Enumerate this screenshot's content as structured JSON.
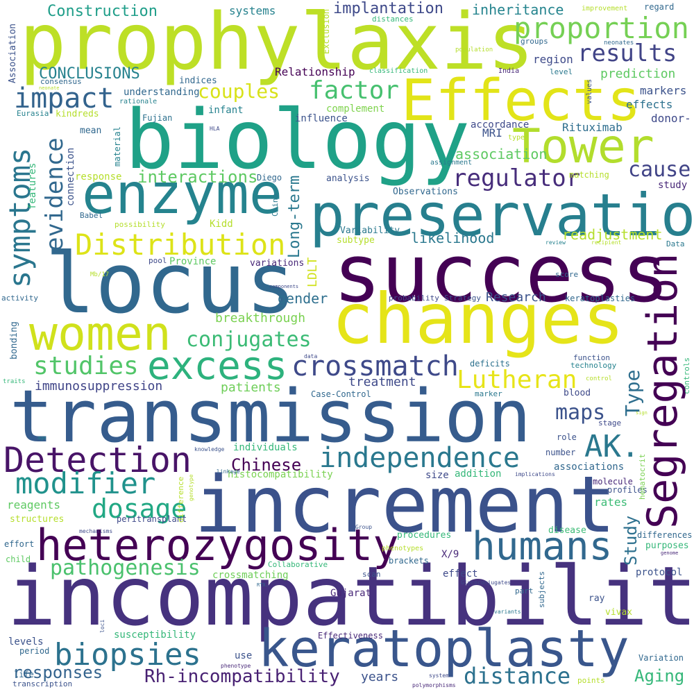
{
  "palette": [
    "#440154",
    "#482878",
    "#3e4989",
    "#31688e",
    "#26828e",
    "#1f9e89",
    "#35b779",
    "#6ece58",
    "#b5de2b",
    "#fde725"
  ],
  "words": [
    {
      "text": "incompatibility",
      "color": "#46327e"
    },
    {
      "text": "transmission",
      "color": "#365c8d"
    },
    {
      "text": "increment",
      "color": "#3b528b"
    },
    {
      "text": "prophylaxis",
      "color": "#bddf26"
    },
    {
      "text": "success",
      "color": "#440154"
    },
    {
      "text": "biology",
      "color": "#1fa187"
    },
    {
      "text": "changes",
      "color": "#e5e419"
    },
    {
      "text": "locus",
      "color": "#31688e"
    },
    {
      "text": "keratoplasty",
      "color": "#39568c"
    },
    {
      "text": "preservation",
      "color": "#277f8e"
    },
    {
      "text": "heterozygosity",
      "color": "#440154"
    },
    {
      "text": "enzyme",
      "color": "#25838e"
    },
    {
      "text": "Effects",
      "color": "#e2e418"
    },
    {
      "text": "Tower",
      "color": "#b2dd2d"
    },
    {
      "text": "Segregation",
      "color": "#440154"
    },
    {
      "text": "women",
      "color": "#d0e11c"
    },
    {
      "text": "excess",
      "color": "#2db27d"
    },
    {
      "text": "Detection",
      "color": "#481467"
    },
    {
      "text": "humans",
      "color": "#31688e"
    },
    {
      "text": "crossmatch",
      "color": "#3e4989"
    },
    {
      "text": "independence",
      "color": "#2a788e"
    },
    {
      "text": "modifier",
      "color": "#20928c"
    },
    {
      "text": "biopsies",
      "color": "#2c728e"
    },
    {
      "text": "Distribution",
      "color": "#dde318"
    },
    {
      "text": "symptoms",
      "color": "#2a768e"
    },
    {
      "text": "AK.",
      "color": "#2a788e"
    },
    {
      "text": "proportion",
      "color": "#75d054"
    },
    {
      "text": "impact",
      "color": "#33638d"
    },
    {
      "text": "factor",
      "color": "#46c06f"
    },
    {
      "text": "results",
      "color": "#414487"
    },
    {
      "text": "evidence",
      "color": "#31688e"
    },
    {
      "text": "studies",
      "color": "#52c569"
    },
    {
      "text": "dosage",
      "color": "#22a884"
    },
    {
      "text": "pathogenesis",
      "color": "#4ac16d"
    },
    {
      "text": "distance",
      "color": "#2c718e"
    },
    {
      "text": "Lutheran",
      "color": "#e7e419"
    },
    {
      "text": "conjugates",
      "color": "#3bbb75"
    },
    {
      "text": "regulator",
      "color": "#472d7b"
    },
    {
      "text": "cause",
      "color": "#414487"
    },
    {
      "text": "maps",
      "color": "#3b528b"
    },
    {
      "text": "Type",
      "color": "#2e6e8e"
    },
    {
      "text": "couples",
      "color": "#d8e219"
    },
    {
      "text": "interactions",
      "color": "#5ec962"
    },
    {
      "text": "responses",
      "color": "#33638d"
    },
    {
      "text": "Rh-incompatibility",
      "color": "#482173"
    },
    {
      "text": "Aging",
      "color": "#35b779"
    },
    {
      "text": "Study",
      "color": "#2d708e"
    },
    {
      "text": "Chinese",
      "color": "#440154"
    },
    {
      "text": "Long-term",
      "color": "#2a788e"
    },
    {
      "text": "Construction",
      "color": "#1f9e89"
    },
    {
      "text": "CONCLUSIONS",
      "color": "#26828e"
    },
    {
      "text": "implantation",
      "color": "#3e4989"
    },
    {
      "text": "inheritance",
      "color": "#25848e"
    },
    {
      "text": "association",
      "color": "#5ec962"
    },
    {
      "text": "readjustment",
      "color": "#b5de2b"
    },
    {
      "text": "likelihood",
      "color": "#2a788e"
    },
    {
      "text": "LDLT",
      "color": "#d0e11c"
    },
    {
      "text": "gender",
      "color": "#2e6f8e"
    },
    {
      "text": "Research",
      "color": "#3b528b"
    },
    {
      "text": "breakthrough",
      "color": "#7ad151"
    },
    {
      "text": "immunosuppression",
      "color": "#404588"
    },
    {
      "text": "treatment",
      "color": "#3e4989"
    },
    {
      "text": "patients",
      "color": "#6ece58"
    },
    {
      "text": "years",
      "color": "#3b528b"
    },
    {
      "text": "prediction",
      "color": "#5ec962"
    },
    {
      "text": "region",
      "color": "#3e4a89"
    },
    {
      "text": "markers",
      "color": "#3b528b"
    },
    {
      "text": "effects",
      "color": "#2c718e"
    },
    {
      "text": "donor-",
      "color": "#3e4989"
    },
    {
      "text": "MRI",
      "color": "#3b528b"
    },
    {
      "text": "Rituximab",
      "color": "#2e6e8e"
    },
    {
      "text": "systems",
      "color": "#26828e"
    },
    {
      "text": "Relationship",
      "color": "#440154"
    },
    {
      "text": "understanding",
      "color": "#31688e"
    },
    {
      "text": "infant",
      "color": "#26828e"
    },
    {
      "text": "influence",
      "color": "#3b528b"
    },
    {
      "text": "complement",
      "color": "#7fd34e"
    },
    {
      "text": "accordance",
      "color": "#3e4989"
    },
    {
      "text": "connection",
      "color": "#3b528b"
    },
    {
      "text": "features",
      "color": "#35b779"
    },
    {
      "text": "response",
      "color": "#b5de2b"
    },
    {
      "text": "Kidd",
      "color": "#b5de2b"
    },
    {
      "text": "Province",
      "color": "#5ec962"
    },
    {
      "text": "study",
      "color": "#482878"
    },
    {
      "text": "analysis",
      "color": "#3b528b"
    },
    {
      "text": "Observations",
      "color": "#31688e"
    },
    {
      "text": "Variability",
      "color": "#2a788e"
    },
    {
      "text": "subtype",
      "color": "#b5de2b"
    },
    {
      "text": "variations",
      "color": "#482878"
    },
    {
      "text": "indices",
      "color": "#31688e"
    },
    {
      "text": "kindreds",
      "color": "#b5de2b"
    },
    {
      "text": "mean",
      "color": "#31688e"
    },
    {
      "text": "material",
      "color": "#26828e"
    },
    {
      "text": "Fujian",
      "color": "#2c718e"
    },
    {
      "text": "Diego",
      "color": "#31688e"
    },
    {
      "text": "China",
      "color": "#2a788e"
    },
    {
      "text": "Babel",
      "color": "#31688e"
    },
    {
      "text": "possibility",
      "color": "#b5de2b"
    },
    {
      "text": "matching",
      "color": "#b5de2b"
    },
    {
      "text": "blood",
      "color": "#3e4989"
    },
    {
      "text": "deficits",
      "color": "#2c718e"
    },
    {
      "text": "technology",
      "color": "#26828e"
    },
    {
      "text": "function",
      "color": "#3b528b"
    },
    {
      "text": "keratoplasties",
      "color": "#31688e"
    },
    {
      "text": "score",
      "color": "#31688e"
    },
    {
      "text": "probability",
      "color": "#3e4989"
    },
    {
      "text": "Strategy",
      "color": "#3b528b"
    },
    {
      "text": "activity",
      "color": "#31688e"
    },
    {
      "text": "bonding",
      "color": "#31688e"
    },
    {
      "text": "Case-Control",
      "color": "#31688e"
    },
    {
      "text": "marker",
      "color": "#2a788e"
    },
    {
      "text": "stage",
      "color": "#3e4989"
    },
    {
      "text": "role",
      "color": "#3b528b"
    },
    {
      "text": "individuals",
      "color": "#35b779"
    },
    {
      "text": "histocompatibility",
      "color": "#7ad151"
    },
    {
      "text": "size",
      "color": "#3e4989"
    },
    {
      "text": "addition",
      "color": "#35b779"
    },
    {
      "text": "associations",
      "color": "#31688e"
    },
    {
      "text": "number",
      "color": "#3b528b"
    },
    {
      "text": "molecule",
      "color": "#482878"
    },
    {
      "text": "profiles",
      "color": "#3b528b"
    },
    {
      "text": "hematocrit",
      "color": "#7ad151"
    },
    {
      "text": "rates",
      "color": "#3bbb75"
    },
    {
      "text": "reagents",
      "color": "#5ec962"
    },
    {
      "text": "structures",
      "color": "#b5de2b"
    },
    {
      "text": "peritransplant",
      "color": "#3e4989"
    },
    {
      "text": "difference",
      "color": "#b5de2b"
    },
    {
      "text": "procedures",
      "color": "#35b779"
    },
    {
      "text": "disease",
      "color": "#3bbb75"
    },
    {
      "text": "differences",
      "color": "#31688e"
    },
    {
      "text": "purposes",
      "color": "#35b779"
    },
    {
      "text": "X/9",
      "color": "#482878"
    },
    {
      "text": "effort",
      "color": "#31688e"
    },
    {
      "text": "child",
      "color": "#5ec962"
    },
    {
      "text": "Collaborative",
      "color": "#35b779"
    },
    {
      "text": "brackets",
      "color": "#31688e"
    },
    {
      "text": "effect",
      "color": "#3e4989"
    },
    {
      "text": "protocol",
      "color": "#3b528b"
    },
    {
      "text": "crossmatching",
      "color": "#6ece58"
    },
    {
      "text": "scan",
      "color": "#3b528b"
    },
    {
      "text": "part",
      "color": "#31688e"
    },
    {
      "text": "subjects",
      "color": "#31688e"
    },
    {
      "text": "ray",
      "color": "#3b528b"
    },
    {
      "text": "vivax",
      "color": "#b5de2b"
    },
    {
      "text": "Gujarat",
      "color": "#482878"
    },
    {
      "text": "levels",
      "color": "#3b528b"
    },
    {
      "text": "susceptibility",
      "color": "#35b779"
    },
    {
      "text": "period",
      "color": "#31688e"
    },
    {
      "text": "Effectiveness",
      "color": "#482878"
    },
    {
      "text": "use",
      "color": "#3b528b"
    },
    {
      "text": "life",
      "color": "#31688e"
    },
    {
      "text": "Variation",
      "color": "#31688e"
    },
    {
      "text": "transcription",
      "color": "#3b528b"
    },
    {
      "text": "points",
      "color": "#b5de2b"
    },
    {
      "text": "Association",
      "color": "#3b528b"
    },
    {
      "text": "Exclusion",
      "color": "#b5de2b"
    },
    {
      "text": "distances",
      "color": "#35b779"
    },
    {
      "text": "improvement",
      "color": "#b5de2b"
    },
    {
      "text": "regard",
      "color": "#31688e"
    },
    {
      "text": "neonates",
      "color": "#31688e"
    },
    {
      "text": "groups",
      "color": "#31688e"
    },
    {
      "text": "population",
      "color": "#b5de2b"
    },
    {
      "text": "classification",
      "color": "#35b779"
    },
    {
      "text": "India",
      "color": "#482878"
    },
    {
      "text": "level",
      "color": "#2a788e"
    },
    {
      "text": "values",
      "color": "#3b528b"
    },
    {
      "text": "consensus",
      "color": "#31688e"
    },
    {
      "text": "neonate",
      "color": "#b5de2b"
    },
    {
      "text": "rationale",
      "color": "#26828e"
    },
    {
      "text": "Eurasia",
      "color": "#26828e"
    },
    {
      "text": "HLA",
      "color": "#3e4989"
    },
    {
      "text": "types",
      "color": "#b5de2b"
    },
    {
      "text": "assignment",
      "color": "#2a788e"
    },
    {
      "text": "review",
      "color": "#26828e"
    },
    {
      "text": "recipient",
      "color": "#b5de2b"
    },
    {
      "text": "Data",
      "color": "#2a788e"
    },
    {
      "text": "pool",
      "color": "#3e4989"
    },
    {
      "text": "Mb/17",
      "color": "#b5de2b"
    },
    {
      "text": "components",
      "color": "#3e4989"
    },
    {
      "text": "data",
      "color": "#3e4989"
    },
    {
      "text": "controls",
      "color": "#35b779"
    },
    {
      "text": "control",
      "color": "#b5de2b"
    },
    {
      "text": "traits",
      "color": "#35b779"
    },
    {
      "text": "sign",
      "color": "#b5de2b"
    },
    {
      "text": "age",
      "color": "#26828e"
    },
    {
      "text": "knowledge",
      "color": "#3b528b"
    },
    {
      "text": "linkage",
      "color": "#31688e"
    },
    {
      "text": "genotype",
      "color": "#b5de2b"
    },
    {
      "text": "implications",
      "color": "#3e4989"
    },
    {
      "text": "mechanisms",
      "color": "#3e4989"
    },
    {
      "text": "Group",
      "color": "#3b528b"
    },
    {
      "text": "phenotypes",
      "color": "#b5de2b"
    },
    {
      "text": "genome",
      "color": "#482878"
    },
    {
      "text": "RTX.",
      "color": "#31688e"
    },
    {
      "text": "Glycoconjugates",
      "color": "#3e4989"
    },
    {
      "text": "variants",
      "color": "#2a788e"
    },
    {
      "text": "loci",
      "color": "#3b528b"
    },
    {
      "text": "phenotype",
      "color": "#482878"
    },
    {
      "text": "system",
      "color": "#3e4989"
    },
    {
      "text": "polymorphisms",
      "color": "#482878"
    }
  ]
}
